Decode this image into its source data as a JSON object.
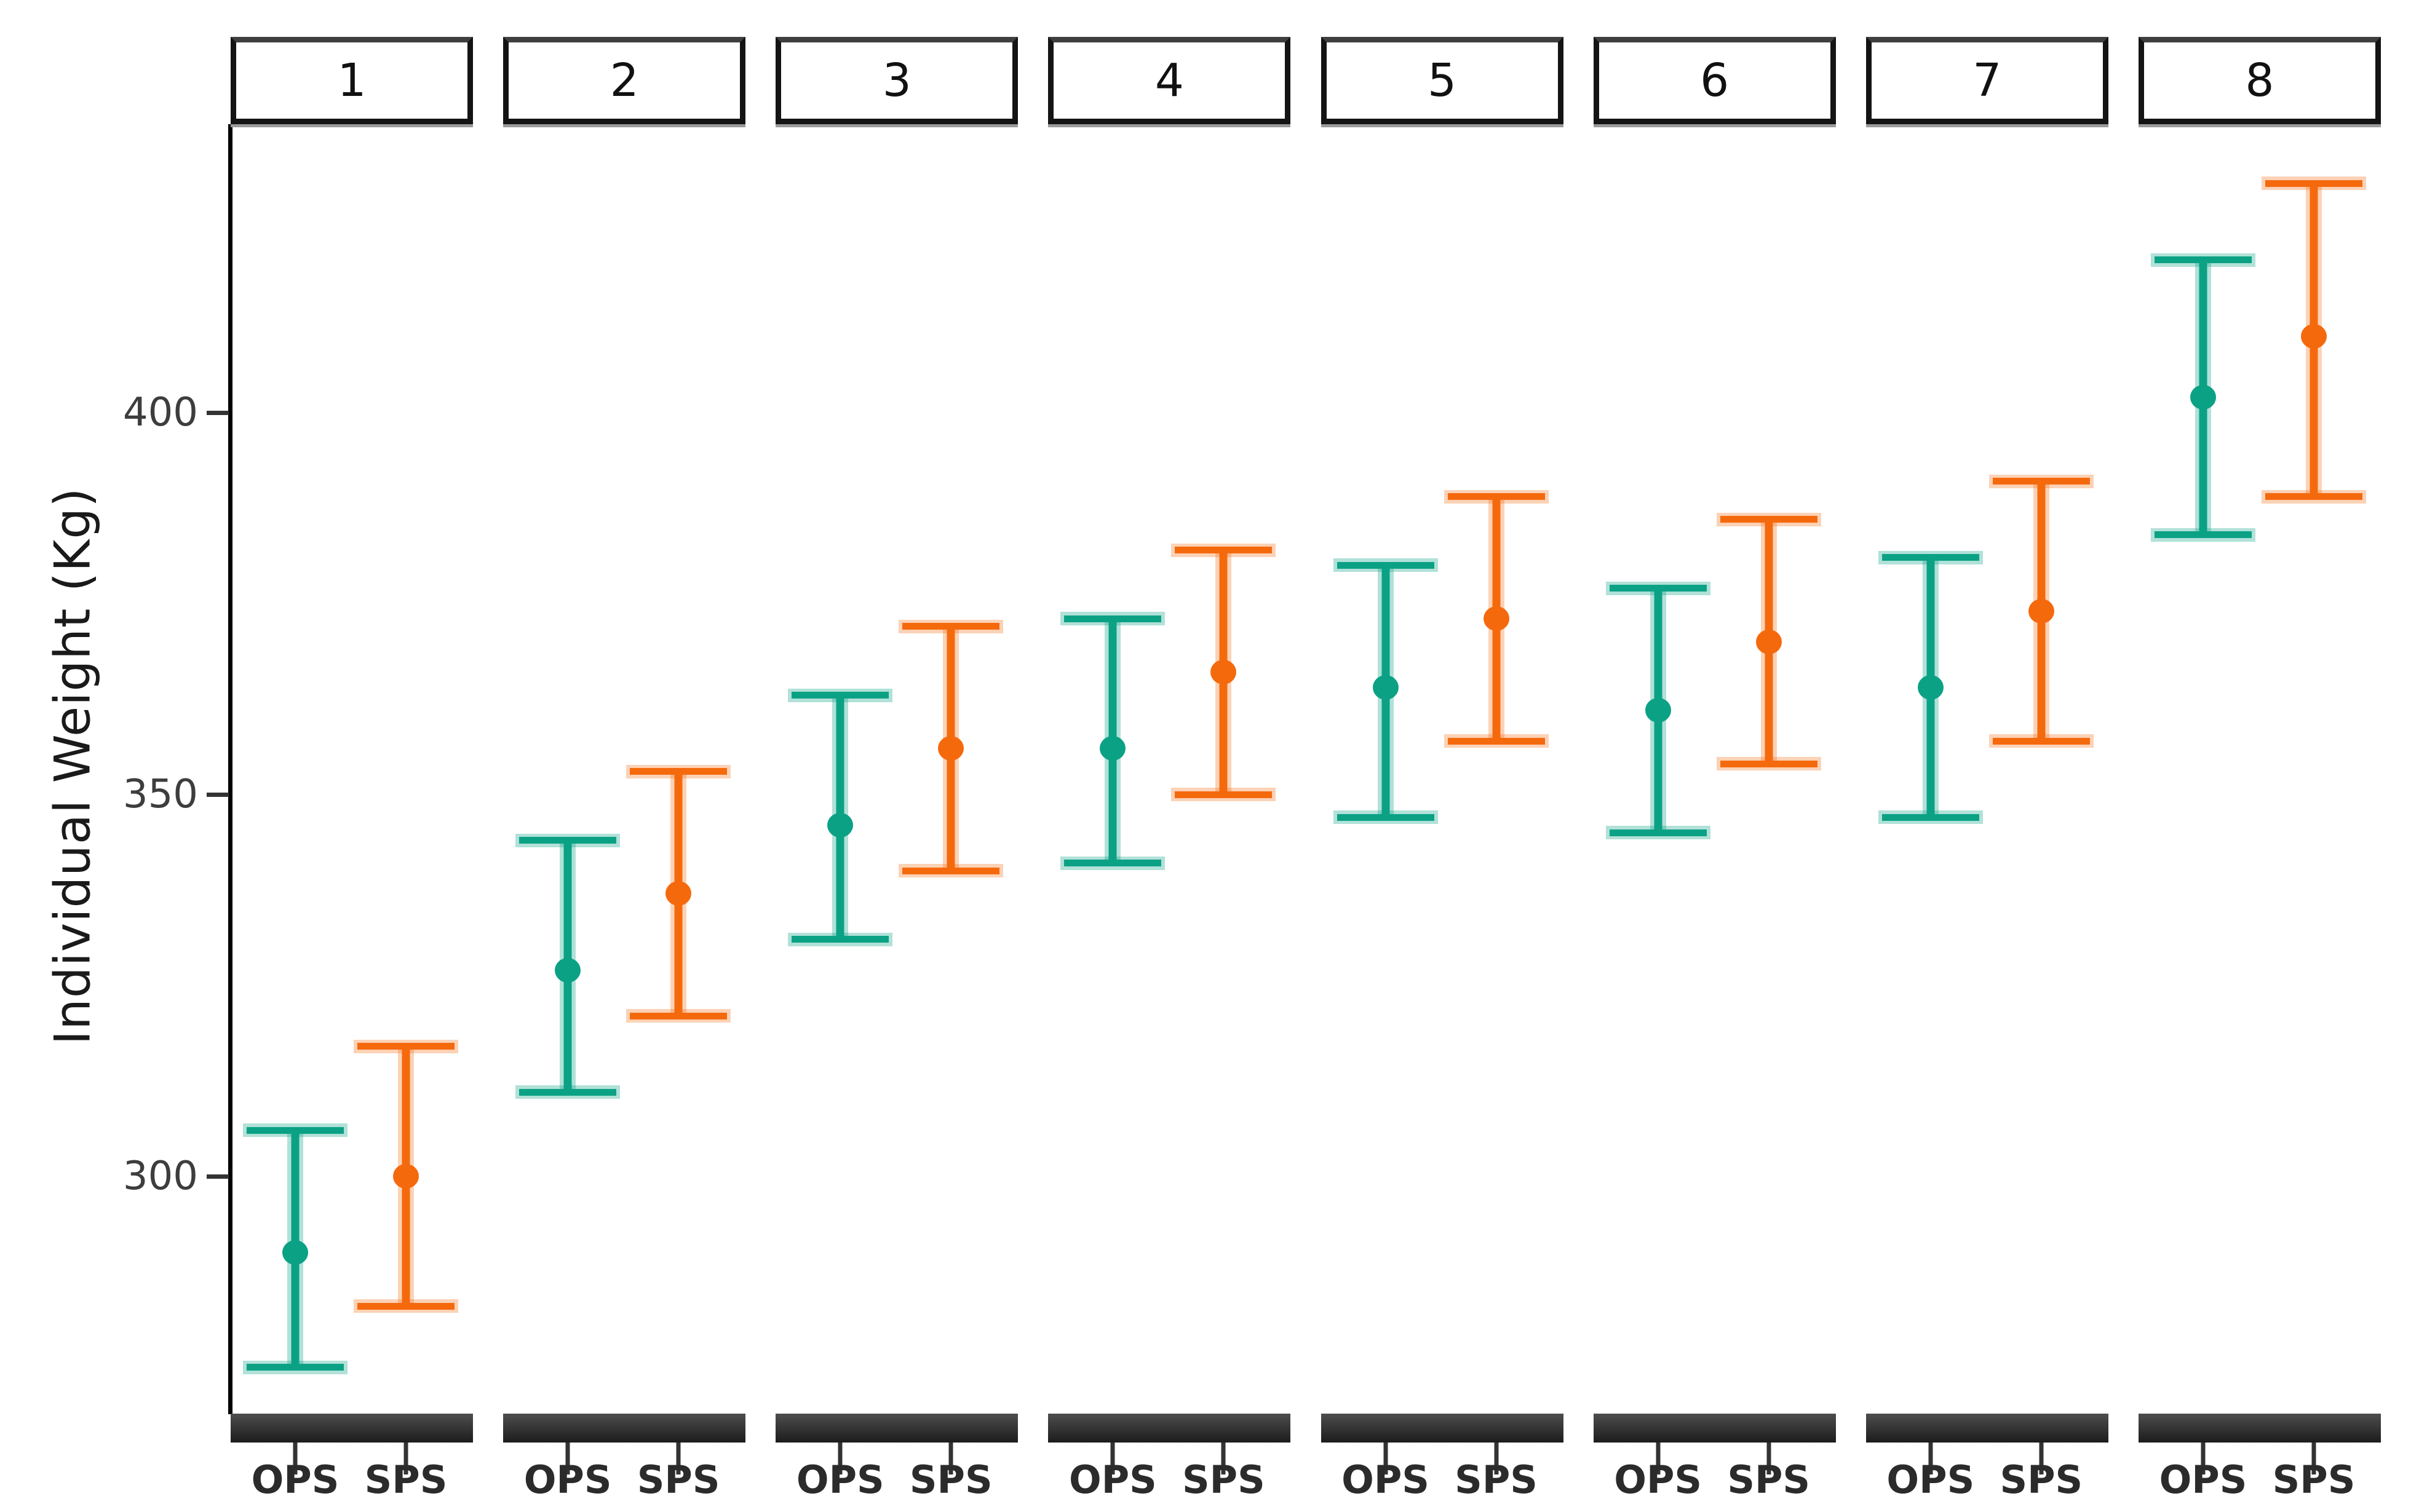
{
  "chart_data": {
    "type": "scatter",
    "subtype": "pointrange-with-errorbars",
    "title": "",
    "xlabel": "",
    "ylabel": "Individual Weight (Kg)",
    "facet_labels": [
      "1",
      "2",
      "3",
      "4",
      "5",
      "6",
      "7",
      "8"
    ],
    "x_categories": [
      "OPS",
      "SPS"
    ],
    "yticks": [
      300,
      350,
      400
    ],
    "ylim": [
      269,
      437
    ],
    "grid": "off",
    "legend": "none",
    "series": [
      {
        "name": "OPS",
        "color": "#0BA185",
        "halo_color": "rgba(11,161,133,0.32)",
        "data": [
          {
            "facet": "1",
            "y": 290,
            "ymin": 275,
            "ymax": 306
          },
          {
            "facet": "2",
            "y": 327,
            "ymin": 311,
            "ymax": 344
          },
          {
            "facet": "3",
            "y": 346,
            "ymin": 331,
            "ymax": 363
          },
          {
            "facet": "4",
            "y": 356,
            "ymin": 341,
            "ymax": 373
          },
          {
            "facet": "5",
            "y": 364,
            "ymin": 347,
            "ymax": 380
          },
          {
            "facet": "6",
            "y": 361,
            "ymin": 345,
            "ymax": 377
          },
          {
            "facet": "7",
            "y": 364,
            "ymin": 347,
            "ymax": 381
          },
          {
            "facet": "8",
            "y": 402,
            "ymin": 384,
            "ymax": 420
          }
        ]
      },
      {
        "name": "SPS",
        "color": "#F5690D",
        "halo_color": "rgba(245,105,13,0.30)",
        "data": [
          {
            "facet": "1",
            "y": 300,
            "ymin": 283,
            "ymax": 317
          },
          {
            "facet": "2",
            "y": 337,
            "ymin": 321,
            "ymax": 353
          },
          {
            "facet": "3",
            "y": 356,
            "ymin": 340,
            "ymax": 372
          },
          {
            "facet": "4",
            "y": 366,
            "ymin": 350,
            "ymax": 382
          },
          {
            "facet": "5",
            "y": 373,
            "ymin": 357,
            "ymax": 389
          },
          {
            "facet": "6",
            "y": 370,
            "ymin": 354,
            "ymax": 386
          },
          {
            "facet": "7",
            "y": 374,
            "ymin": 357,
            "ymax": 391
          },
          {
            "facet": "8",
            "y": 410,
            "ymin": 389,
            "ymax": 430
          }
        ]
      }
    ]
  }
}
